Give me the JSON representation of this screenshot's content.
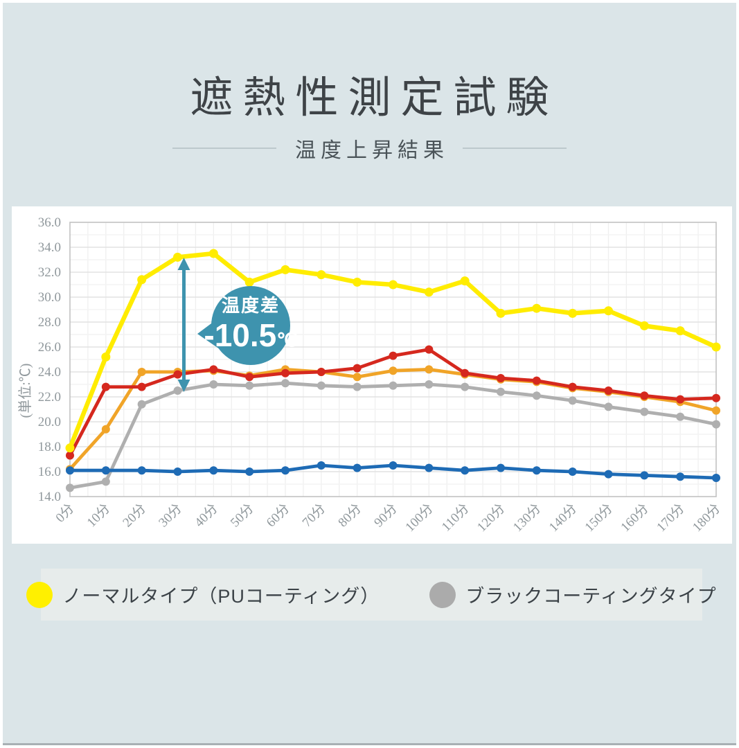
{
  "page": {
    "title": "遮熱性測定試験",
    "subtitle": "温度上昇結果"
  },
  "chart_data": {
    "type": "line",
    "x_labels": [
      "0分",
      "10分",
      "20分",
      "30分",
      "40分",
      "50分",
      "60分",
      "70分",
      "80分",
      "90分",
      "100分",
      "110分",
      "120分",
      "130分",
      "140分",
      "150分",
      "160分",
      "170分",
      "180分"
    ],
    "y_axis_title": "(単位:℃)",
    "ylim": [
      14.0,
      36.0
    ],
    "ytick_step": 2.0,
    "ytick_labels": [
      "36.0",
      "34.0",
      "32.0",
      "30.0",
      "28.0",
      "26.0",
      "24.0",
      "22.0",
      "20.0",
      "18.0",
      "16.0",
      "14.0"
    ],
    "grid": "on",
    "series": [
      {
        "id": "black-coating",
        "label": "ブラックコーティングタイプ",
        "color": "#afafaf",
        "values": [
          14.7,
          15.2,
          21.4,
          22.5,
          23.0,
          22.9,
          23.1,
          22.9,
          22.8,
          22.9,
          23.0,
          22.8,
          22.4,
          22.1,
          21.7,
          21.2,
          20.8,
          20.4,
          19.8
        ]
      },
      {
        "id": "orange",
        "label": "",
        "color": "#f0a428",
        "values": [
          16.2,
          19.4,
          24.0,
          24.0,
          24.1,
          23.7,
          24.2,
          24.0,
          23.6,
          24.1,
          24.2,
          23.8,
          23.4,
          23.2,
          22.7,
          22.4,
          22.0,
          21.6,
          20.9
        ]
      },
      {
        "id": "red",
        "label": "",
        "color": "#d5281e",
        "values": [
          17.3,
          22.8,
          22.8,
          23.8,
          24.2,
          23.6,
          23.9,
          24.0,
          24.3,
          25.3,
          25.8,
          23.9,
          23.5,
          23.3,
          22.8,
          22.5,
          22.1,
          21.8,
          21.9
        ]
      },
      {
        "id": "normal-pu",
        "label": "ノーマルタイプ（PUコーティング）",
        "color": "#ffec00",
        "values": [
          17.9,
          25.2,
          31.4,
          33.2,
          33.5,
          31.2,
          32.2,
          31.8,
          31.2,
          31.0,
          30.4,
          31.3,
          28.7,
          29.1,
          28.7,
          28.9,
          27.7,
          27.3,
          26.0
        ]
      },
      {
        "id": "blue",
        "label": "",
        "color": "#1e6bb5",
        "values": [
          16.1,
          16.1,
          16.1,
          16.0,
          16.1,
          16.0,
          16.1,
          16.5,
          16.3,
          16.5,
          16.3,
          16.1,
          16.3,
          16.1,
          16.0,
          15.8,
          15.7,
          15.6,
          15.5
        ]
      }
    ],
    "annotation": {
      "title": "温度差",
      "value": "-10.5",
      "unit": "℃",
      "color": "#3e93ae",
      "at_x_label": "30分"
    }
  },
  "legend": {
    "items": [
      {
        "label": "ノーマルタイプ（PUコーティング）",
        "color": "#fff000"
      },
      {
        "label": "ブラックコーティングタイプ",
        "color": "#ababab"
      }
    ]
  }
}
